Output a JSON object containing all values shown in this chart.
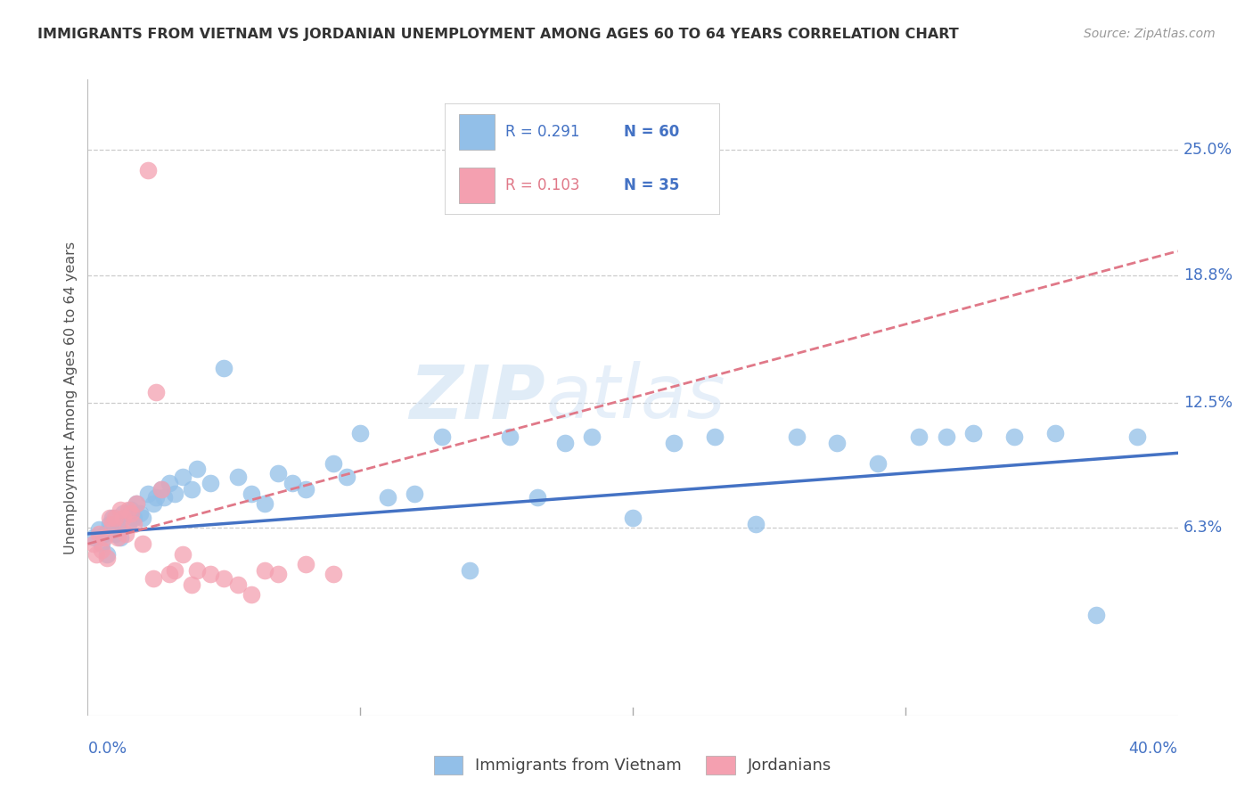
{
  "title": "IMMIGRANTS FROM VIETNAM VS JORDANIAN UNEMPLOYMENT AMONG AGES 60 TO 64 YEARS CORRELATION CHART",
  "source": "Source: ZipAtlas.com",
  "ylabel": "Unemployment Among Ages 60 to 64 years",
  "ytick_labels": [
    "25.0%",
    "18.8%",
    "12.5%",
    "6.3%"
  ],
  "ytick_values": [
    0.25,
    0.188,
    0.125,
    0.063
  ],
  "xlim": [
    0.0,
    0.4
  ],
  "ylim": [
    -0.03,
    0.285
  ],
  "legend_r1": "R = 0.291",
  "legend_n1": "N = 60",
  "legend_r2": "R = 0.103",
  "legend_n2": "N = 35",
  "legend_label1": "Immigrants from Vietnam",
  "legend_label2": "Jordanians",
  "color_blue": "#92bfe8",
  "color_pink": "#f4a0b0",
  "color_blue_line": "#4472c4",
  "color_pink_line": "#e07888",
  "color_blue_text": "#4472c4",
  "color_axis_text": "#4472c4",
  "watermark_zip": "ZIP",
  "watermark_atlas": "atlas",
  "blue_scatter_x": [
    0.002,
    0.004,
    0.005,
    0.006,
    0.007,
    0.008,
    0.009,
    0.01,
    0.011,
    0.012,
    0.013,
    0.015,
    0.016,
    0.017,
    0.018,
    0.019,
    0.02,
    0.022,
    0.024,
    0.025,
    0.027,
    0.028,
    0.03,
    0.032,
    0.035,
    0.038,
    0.04,
    0.045,
    0.05,
    0.055,
    0.06,
    0.065,
    0.07,
    0.075,
    0.08,
    0.09,
    0.095,
    0.1,
    0.11,
    0.12,
    0.13,
    0.14,
    0.155,
    0.165,
    0.175,
    0.185,
    0.2,
    0.215,
    0.23,
    0.245,
    0.26,
    0.275,
    0.29,
    0.305,
    0.315,
    0.325,
    0.34,
    0.355,
    0.37,
    0.385
  ],
  "blue_scatter_y": [
    0.058,
    0.062,
    0.055,
    0.06,
    0.05,
    0.065,
    0.068,
    0.06,
    0.063,
    0.058,
    0.07,
    0.065,
    0.072,
    0.068,
    0.075,
    0.07,
    0.068,
    0.08,
    0.075,
    0.078,
    0.082,
    0.078,
    0.085,
    0.08,
    0.088,
    0.082,
    0.092,
    0.085,
    0.142,
    0.088,
    0.08,
    0.075,
    0.09,
    0.085,
    0.082,
    0.095,
    0.088,
    0.11,
    0.078,
    0.08,
    0.108,
    0.042,
    0.108,
    0.078,
    0.105,
    0.108,
    0.068,
    0.105,
    0.108,
    0.065,
    0.108,
    0.105,
    0.095,
    0.108,
    0.108,
    0.11,
    0.108,
    0.11,
    0.02,
    0.108
  ],
  "pink_scatter_x": [
    0.002,
    0.003,
    0.004,
    0.005,
    0.006,
    0.007,
    0.008,
    0.009,
    0.01,
    0.011,
    0.012,
    0.013,
    0.014,
    0.015,
    0.016,
    0.017,
    0.018,
    0.02,
    0.022,
    0.024,
    0.025,
    0.027,
    0.03,
    0.032,
    0.035,
    0.038,
    0.04,
    0.045,
    0.05,
    0.055,
    0.06,
    0.065,
    0.07,
    0.08,
    0.09
  ],
  "pink_scatter_y": [
    0.055,
    0.05,
    0.06,
    0.052,
    0.058,
    0.048,
    0.068,
    0.065,
    0.068,
    0.058,
    0.072,
    0.068,
    0.06,
    0.072,
    0.07,
    0.065,
    0.075,
    0.055,
    0.24,
    0.038,
    0.13,
    0.082,
    0.04,
    0.042,
    0.05,
    0.035,
    0.042,
    0.04,
    0.038,
    0.035,
    0.03,
    0.042,
    0.04,
    0.045,
    0.04
  ],
  "blue_line_x": [
    0.0,
    0.4
  ],
  "blue_line_y": [
    0.06,
    0.1
  ],
  "pink_line_x": [
    0.0,
    0.4
  ],
  "pink_line_y": [
    0.055,
    0.2
  ]
}
